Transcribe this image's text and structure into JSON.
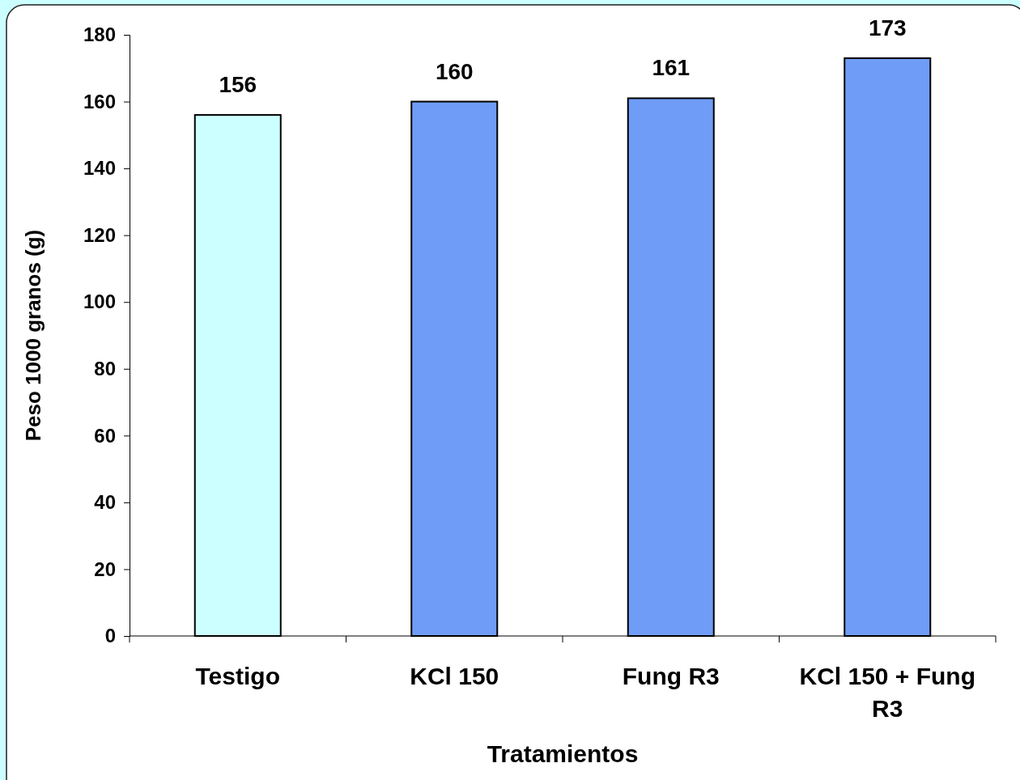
{
  "chart_data": {
    "type": "bar",
    "xlabel": "Tratamientos",
    "ylabel": "Peso 1000 granos (g)",
    "categories": [
      "Testigo",
      "KCl 150",
      "Fung R3",
      "KCl 150 + Fung R3"
    ],
    "values": [
      156,
      160,
      161,
      173
    ],
    "colors": [
      "#ccffff",
      "#6f9cf7",
      "#6f9cf7",
      "#6f9cf7"
    ],
    "ylim": [
      0,
      180
    ],
    "yticks": [
      0,
      20,
      40,
      60,
      80,
      100,
      120,
      140,
      160,
      180
    ],
    "grid": false,
    "data_labels": true
  }
}
